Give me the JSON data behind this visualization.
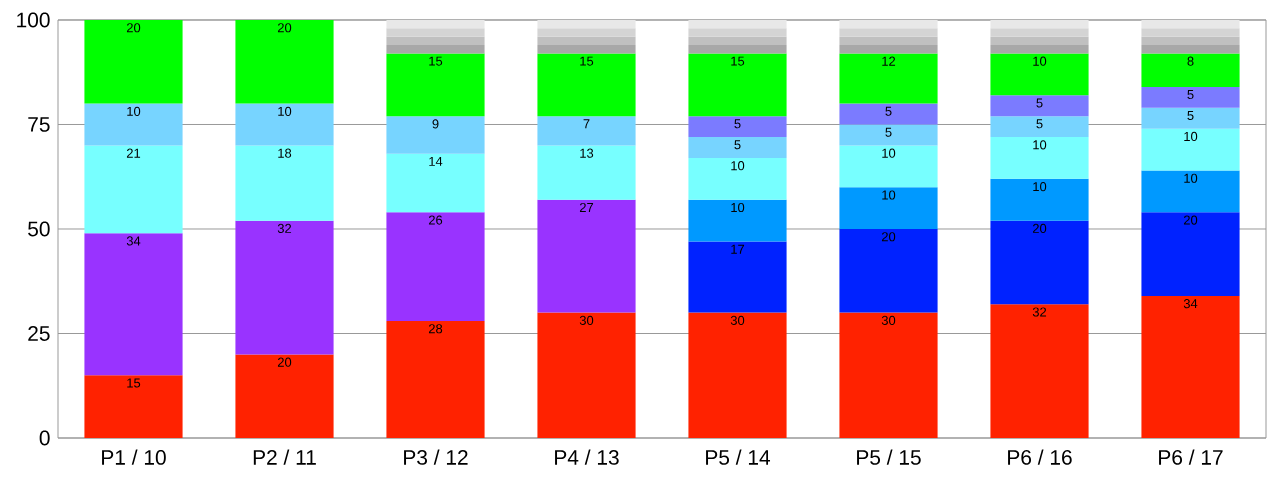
{
  "chart_data": {
    "type": "bar",
    "stacked": true,
    "categories": [
      "P1 / 10",
      "P2 / 11",
      "P3 / 12",
      "P4 / 13",
      "P5 / 14",
      "P5 / 15",
      "P6 / 16",
      "P6 / 17"
    ],
    "ylim": [
      0,
      100
    ],
    "yticks": [
      0,
      25,
      50,
      75,
      100
    ],
    "grid": "y",
    "series": [
      {
        "color": "#ff2200",
        "values": [
          15,
          20,
          28,
          30,
          30,
          30,
          32,
          34
        ],
        "value_labels": [
          "15",
          "20",
          "28",
          "30",
          "30",
          "30",
          "32",
          "34"
        ]
      },
      {
        "color": "#9933ff",
        "values": [
          34,
          32,
          26,
          27,
          null,
          null,
          null,
          null
        ],
        "value_labels": [
          "34",
          "32",
          "26",
          "27",
          null,
          null,
          null,
          null
        ]
      },
      {
        "color": "#0022ff",
        "values": [
          null,
          null,
          null,
          null,
          17,
          20,
          20,
          20
        ],
        "value_labels": [
          null,
          null,
          null,
          null,
          "17",
          "20",
          "20",
          "20"
        ]
      },
      {
        "color": "#0099ff",
        "values": [
          null,
          null,
          null,
          null,
          10,
          10,
          10,
          10
        ],
        "value_labels": [
          null,
          null,
          null,
          null,
          "10",
          "10",
          "10",
          "10"
        ]
      },
      {
        "color": "#77ffff",
        "values": [
          21,
          18,
          14,
          13,
          10,
          10,
          10,
          10
        ],
        "value_labels": [
          "21",
          "18",
          "14",
          "13",
          "10",
          "10",
          "10",
          "10"
        ]
      },
      {
        "color": "#77d4ff",
        "values": [
          10,
          10,
          9,
          7,
          5,
          5,
          5,
          5
        ],
        "value_labels": [
          "10",
          "10",
          "9",
          "7",
          "5",
          "5",
          "5",
          "5"
        ]
      },
      {
        "color": "#7b7bff",
        "values": [
          null,
          null,
          null,
          null,
          5,
          5,
          5,
          5
        ],
        "value_labels": [
          null,
          null,
          null,
          null,
          "5",
          "5",
          "5",
          "5"
        ]
      },
      {
        "color": "#00ff00",
        "values": [
          20,
          20,
          15,
          15,
          15,
          12,
          10,
          8
        ],
        "value_labels": [
          "20",
          "20",
          "15",
          "15",
          "15",
          "12",
          "10",
          "8"
        ]
      },
      {
        "color": "#a8a8a8",
        "values": [
          null,
          null,
          2,
          2,
          2,
          2,
          2,
          2
        ]
      },
      {
        "color": "#c0c0c0",
        "values": [
          null,
          null,
          2,
          2,
          2,
          2,
          2,
          2
        ]
      },
      {
        "color": "#d4d4d4",
        "values": [
          null,
          null,
          2,
          2,
          2,
          2,
          2,
          2
        ]
      },
      {
        "color": "#e8e8e8",
        "values": [
          null,
          null,
          2,
          2,
          2,
          2,
          2,
          2
        ]
      }
    ]
  }
}
